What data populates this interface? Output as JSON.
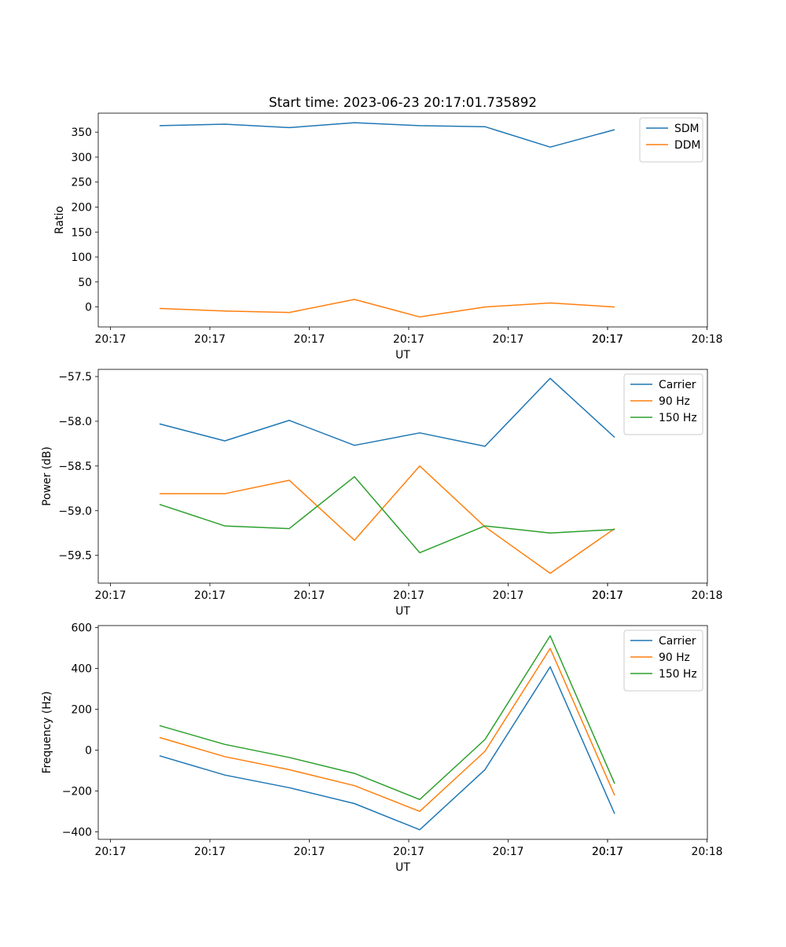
{
  "figure": {
    "title": "Start time: 2023-06-23 20:17:01.735892"
  },
  "chart_data": [
    {
      "type": "line",
      "title": "Start time: 2023-06-23 20:17:01.735892",
      "xlabel": "UT",
      "ylabel": "Ratio",
      "x_tick_labels": [
        "20:17",
        "20:17",
        "20:17",
        "20:17",
        "20:17",
        "20:17",
        "20:17",
        "20:18"
      ],
      "y_ticks": [
        0,
        50,
        100,
        150,
        200,
        250,
        300,
        350
      ],
      "ylim": [
        -40,
        388
      ],
      "legend": "top-right",
      "grid": false,
      "series": [
        {
          "name": "SDM",
          "color": "#1f77b4",
          "values": [
            363,
            366,
            359,
            369,
            363,
            361,
            320,
            355
          ]
        },
        {
          "name": "DDM",
          "color": "#ff7f0e",
          "values": [
            -3,
            -8,
            -11,
            15,
            -20,
            0,
            8,
            0
          ]
        }
      ]
    },
    {
      "type": "line",
      "title": "",
      "xlabel": "UT",
      "ylabel": "Power (dB)",
      "x_tick_labels": [
        "20:17",
        "20:17",
        "20:17",
        "20:17",
        "20:17",
        "20:17",
        "20:17",
        "20:18"
      ],
      "y_ticks": [
        -59.5,
        -59.0,
        -58.5,
        -58.0,
        -57.5
      ],
      "y_tick_labels": [
        "−59.5",
        "−59.0",
        "−58.5",
        "−58.0",
        "−57.5"
      ],
      "ylim": [
        -59.81,
        -57.42
      ],
      "legend": "top-right",
      "grid": false,
      "series": [
        {
          "name": "Carrier",
          "color": "#1f77b4",
          "values": [
            -58.03,
            -58.22,
            -57.99,
            -58.27,
            -58.13,
            -58.28,
            -57.52,
            -58.18
          ]
        },
        {
          "name": "90 Hz",
          "color": "#ff7f0e",
          "values": [
            -58.81,
            -58.81,
            -58.66,
            -59.33,
            -58.5,
            -59.18,
            -59.7,
            -59.2
          ]
        },
        {
          "name": "150 Hz",
          "color": "#2ca02c",
          "values": [
            -58.93,
            -59.17,
            -59.2,
            -58.62,
            -59.47,
            -59.17,
            -59.25,
            -59.21
          ]
        }
      ]
    },
    {
      "type": "line",
      "title": "",
      "xlabel": "UT",
      "ylabel": "Frequency (Hz)",
      "x_tick_labels": [
        "20:17",
        "20:17",
        "20:17",
        "20:17",
        "20:17",
        "20:17",
        "20:17",
        "20:18"
      ],
      "y_ticks": [
        -400,
        -200,
        0,
        200,
        400,
        600
      ],
      "y_tick_labels": [
        "−400",
        "−200",
        "0",
        "200",
        "400",
        "600"
      ],
      "ylim": [
        -437,
        610
      ],
      "legend": "top-right",
      "grid": false,
      "series": [
        {
          "name": "Carrier",
          "color": "#1f77b4",
          "values": [
            -28,
            -122,
            -184,
            -262,
            -390,
            -96,
            408,
            -312
          ]
        },
        {
          "name": "90 Hz",
          "color": "#ff7f0e",
          "values": [
            62,
            -32,
            -96,
            -174,
            -300,
            -6,
            498,
            -222
          ]
        },
        {
          "name": "150 Hz",
          "color": "#2ca02c",
          "values": [
            120,
            28,
            -36,
            -114,
            -242,
            52,
            560,
            -164
          ]
        }
      ]
    }
  ]
}
